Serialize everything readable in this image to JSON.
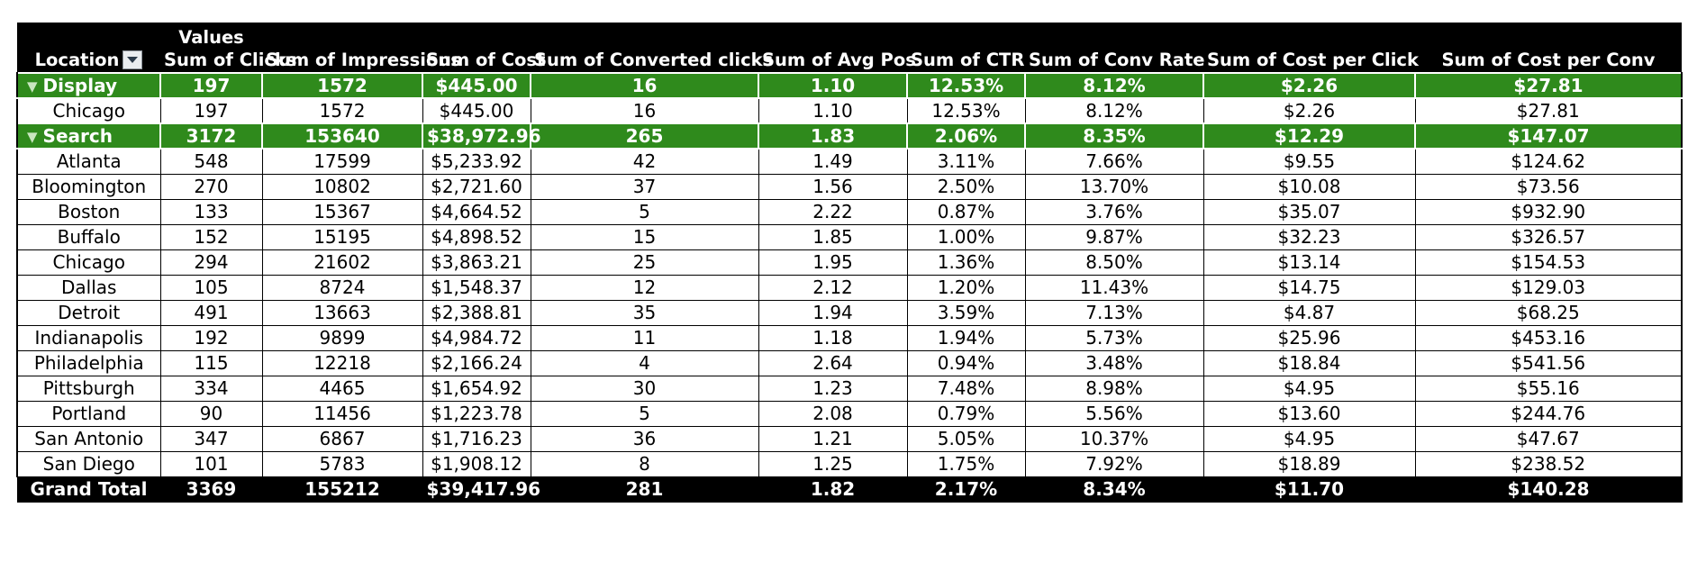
{
  "table": {
    "values_label": "Values",
    "location_label": "Location",
    "columns": [
      "Sum of Clicks",
      "Sum of Impressions",
      "Sum of Cost",
      "Sum of Converted clicks",
      "Sum of Avg Pos",
      "Sum of CTR",
      "Sum of Conv Rate",
      "Sum of Cost per Click",
      "Sum of Cost per Conv"
    ],
    "groups": [
      {
        "name": "Display",
        "values": [
          "197",
          "1572",
          "$445.00",
          "16",
          "1.10",
          "12.53%",
          "8.12%",
          "$2.26",
          "$27.81"
        ],
        "rows": [
          {
            "location": "Chicago",
            "values": [
              "197",
              "1572",
              "$445.00",
              "16",
              "1.10",
              "12.53%",
              "8.12%",
              "$2.26",
              "$27.81"
            ]
          }
        ]
      },
      {
        "name": "Search",
        "values": [
          "3172",
          "153640",
          "$38,972.96",
          "265",
          "1.83",
          "2.06%",
          "8.35%",
          "$12.29",
          "$147.07"
        ],
        "rows": [
          {
            "location": "Atlanta",
            "values": [
              "548",
              "17599",
              "$5,233.92",
              "42",
              "1.49",
              "3.11%",
              "7.66%",
              "$9.55",
              "$124.62"
            ]
          },
          {
            "location": "Bloomington",
            "values": [
              "270",
              "10802",
              "$2,721.60",
              "37",
              "1.56",
              "2.50%",
              "13.70%",
              "$10.08",
              "$73.56"
            ]
          },
          {
            "location": "Boston",
            "values": [
              "133",
              "15367",
              "$4,664.52",
              "5",
              "2.22",
              "0.87%",
              "3.76%",
              "$35.07",
              "$932.90"
            ]
          },
          {
            "location": "Buffalo",
            "values": [
              "152",
              "15195",
              "$4,898.52",
              "15",
              "1.85",
              "1.00%",
              "9.87%",
              "$32.23",
              "$326.57"
            ]
          },
          {
            "location": "Chicago",
            "values": [
              "294",
              "21602",
              "$3,863.21",
              "25",
              "1.95",
              "1.36%",
              "8.50%",
              "$13.14",
              "$154.53"
            ]
          },
          {
            "location": "Dallas",
            "values": [
              "105",
              "8724",
              "$1,548.37",
              "12",
              "2.12",
              "1.20%",
              "11.43%",
              "$14.75",
              "$129.03"
            ]
          },
          {
            "location": "Detroit",
            "values": [
              "491",
              "13663",
              "$2,388.81",
              "35",
              "1.94",
              "3.59%",
              "7.13%",
              "$4.87",
              "$68.25"
            ]
          },
          {
            "location": "Indianapolis",
            "values": [
              "192",
              "9899",
              "$4,984.72",
              "11",
              "1.18",
              "1.94%",
              "5.73%",
              "$25.96",
              "$453.16"
            ]
          },
          {
            "location": "Philadelphia",
            "values": [
              "115",
              "12218",
              "$2,166.24",
              "4",
              "2.64",
              "0.94%",
              "3.48%",
              "$18.84",
              "$541.56"
            ]
          },
          {
            "location": "Pittsburgh",
            "values": [
              "334",
              "4465",
              "$1,654.92",
              "30",
              "1.23",
              "7.48%",
              "8.98%",
              "$4.95",
              "$55.16"
            ]
          },
          {
            "location": "Portland",
            "values": [
              "90",
              "11456",
              "$1,223.78",
              "5",
              "2.08",
              "0.79%",
              "5.56%",
              "$13.60",
              "$244.76"
            ]
          },
          {
            "location": "San Antonio",
            "values": [
              "347",
              "6867",
              "$1,716.23",
              "36",
              "1.21",
              "5.05%",
              "10.37%",
              "$4.95",
              "$47.67"
            ]
          },
          {
            "location": "San Diego",
            "values": [
              "101",
              "5783",
              "$1,908.12",
              "8",
              "1.25",
              "1.75%",
              "7.92%",
              "$18.89",
              "$238.52"
            ]
          }
        ]
      }
    ],
    "grand_total": {
      "label": "Grand Total",
      "values": [
        "3369",
        "155212",
        "$39,417.96",
        "281",
        "1.82",
        "2.17%",
        "8.34%",
        "$11.70",
        "$140.28"
      ]
    }
  },
  "colors": {
    "group_row": "#2f8a1c",
    "header": "#000000",
    "grand_total": "#000000"
  },
  "icons": {
    "filter_dropdown": "chevron-down-icon",
    "group_collapse": "triangle-down-icon"
  }
}
